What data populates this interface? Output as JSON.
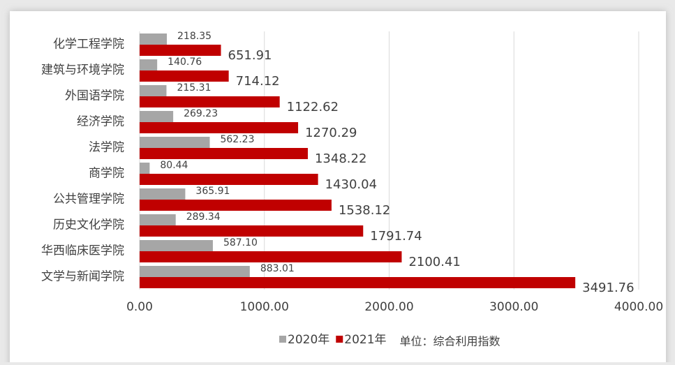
{
  "chart_data": {
    "type": "hbar",
    "categories": [
      "化学工程学院",
      "建筑与环境学院",
      "外国语学院",
      "经济学院",
      "法学院",
      "商学院",
      "公共管理学院",
      "历史文化学院",
      "华西临床医学院",
      "文学与新闻学院"
    ],
    "series": [
      {
        "name": "2020年",
        "color": "#a6a6a6",
        "values": [
          218.35,
          140.76,
          215.31,
          269.23,
          562.23,
          80.44,
          365.91,
          289.34,
          587.1,
          883.01
        ],
        "value_labels": [
          "218.35",
          "140.76",
          "215.31",
          "269.23",
          "562.23",
          "80.44",
          "365.91",
          "289.34",
          "587.10",
          "883.01"
        ]
      },
      {
        "name": "2021年",
        "color": "#c00000",
        "values": [
          651.91,
          714.12,
          1122.62,
          1270.29,
          1348.22,
          1430.04,
          1538.12,
          1791.74,
          2100.41,
          3491.76
        ]
      }
    ],
    "xlim": [
      0,
      4000
    ],
    "xticks": [
      {
        "value": 0,
        "label": "0.00"
      },
      {
        "value": 1000,
        "label": "1000.00"
      },
      {
        "value": 2000,
        "label": "2000.00"
      },
      {
        "value": 3000,
        "label": "3000.00"
      },
      {
        "value": 4000,
        "label": "4000.00"
      }
    ],
    "grid": true,
    "legend": "bottom",
    "annotation": "单位：综合利用指数"
  }
}
